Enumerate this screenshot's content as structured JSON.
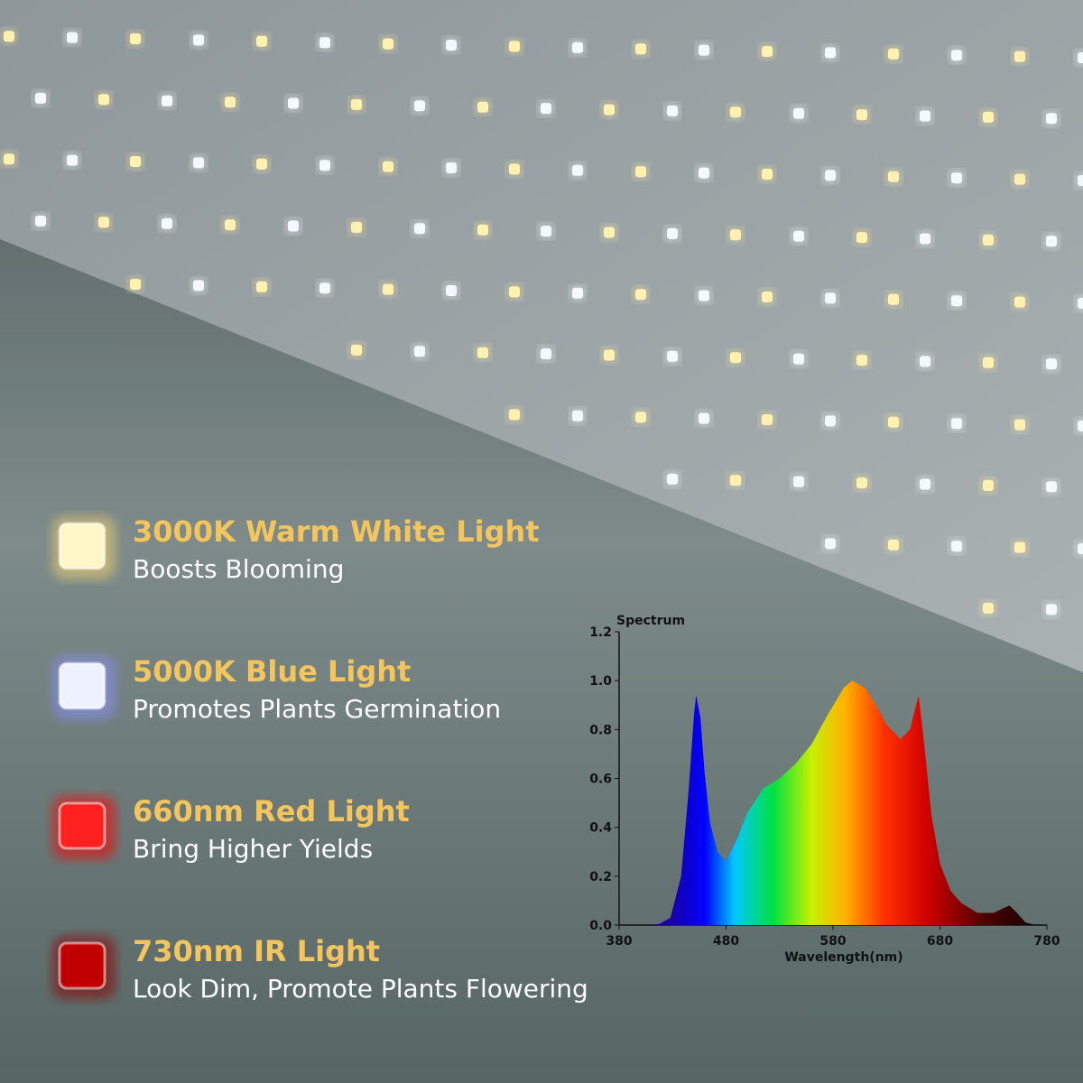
{
  "features": [
    {
      "title": "3000K Warm White Light",
      "description": "Boosts Blooming"
    },
    {
      "title": "5000K Blue Light",
      "description": "Promotes Plants Germination"
    },
    {
      "title": "660nm Red Light",
      "description": "Bring Higher Yields"
    },
    {
      "title": "730nm IR Light",
      "description": "Look Dim, Promote Plants Flowering"
    }
  ],
  "chart_data": {
    "type": "area",
    "title": "Spectrum",
    "x_label": "Wavelength(nm)",
    "x": [
      380,
      410,
      418,
      428,
      438,
      445,
      450,
      452,
      456,
      460,
      465,
      472,
      480,
      490,
      500,
      515,
      530,
      545,
      560,
      575,
      590,
      598,
      610,
      620,
      630,
      643,
      652,
      660,
      665,
      672,
      680,
      690,
      700,
      715,
      730,
      740,
      745,
      752,
      760,
      770,
      780
    ],
    "values": [
      0,
      0,
      0.005,
      0.03,
      0.2,
      0.55,
      0.86,
      0.94,
      0.85,
      0.62,
      0.42,
      0.3,
      0.26,
      0.35,
      0.46,
      0.56,
      0.6,
      0.66,
      0.74,
      0.86,
      0.97,
      1.0,
      0.97,
      0.9,
      0.82,
      0.76,
      0.8,
      0.94,
      0.75,
      0.45,
      0.25,
      0.14,
      0.09,
      0.05,
      0.05,
      0.07,
      0.08,
      0.05,
      0.01,
      0,
      0
    ],
    "xlim": [
      380,
      780
    ],
    "xticks": [
      380,
      480,
      580,
      680,
      780
    ],
    "ylim": [
      0,
      1.2
    ],
    "yticks": [
      {
        "value": 0,
        "label": "0.0"
      },
      0.2,
      0.4,
      0.6,
      0.8,
      {
        "value": 1,
        "label": "1.0"
      },
      1.2
    ]
  }
}
